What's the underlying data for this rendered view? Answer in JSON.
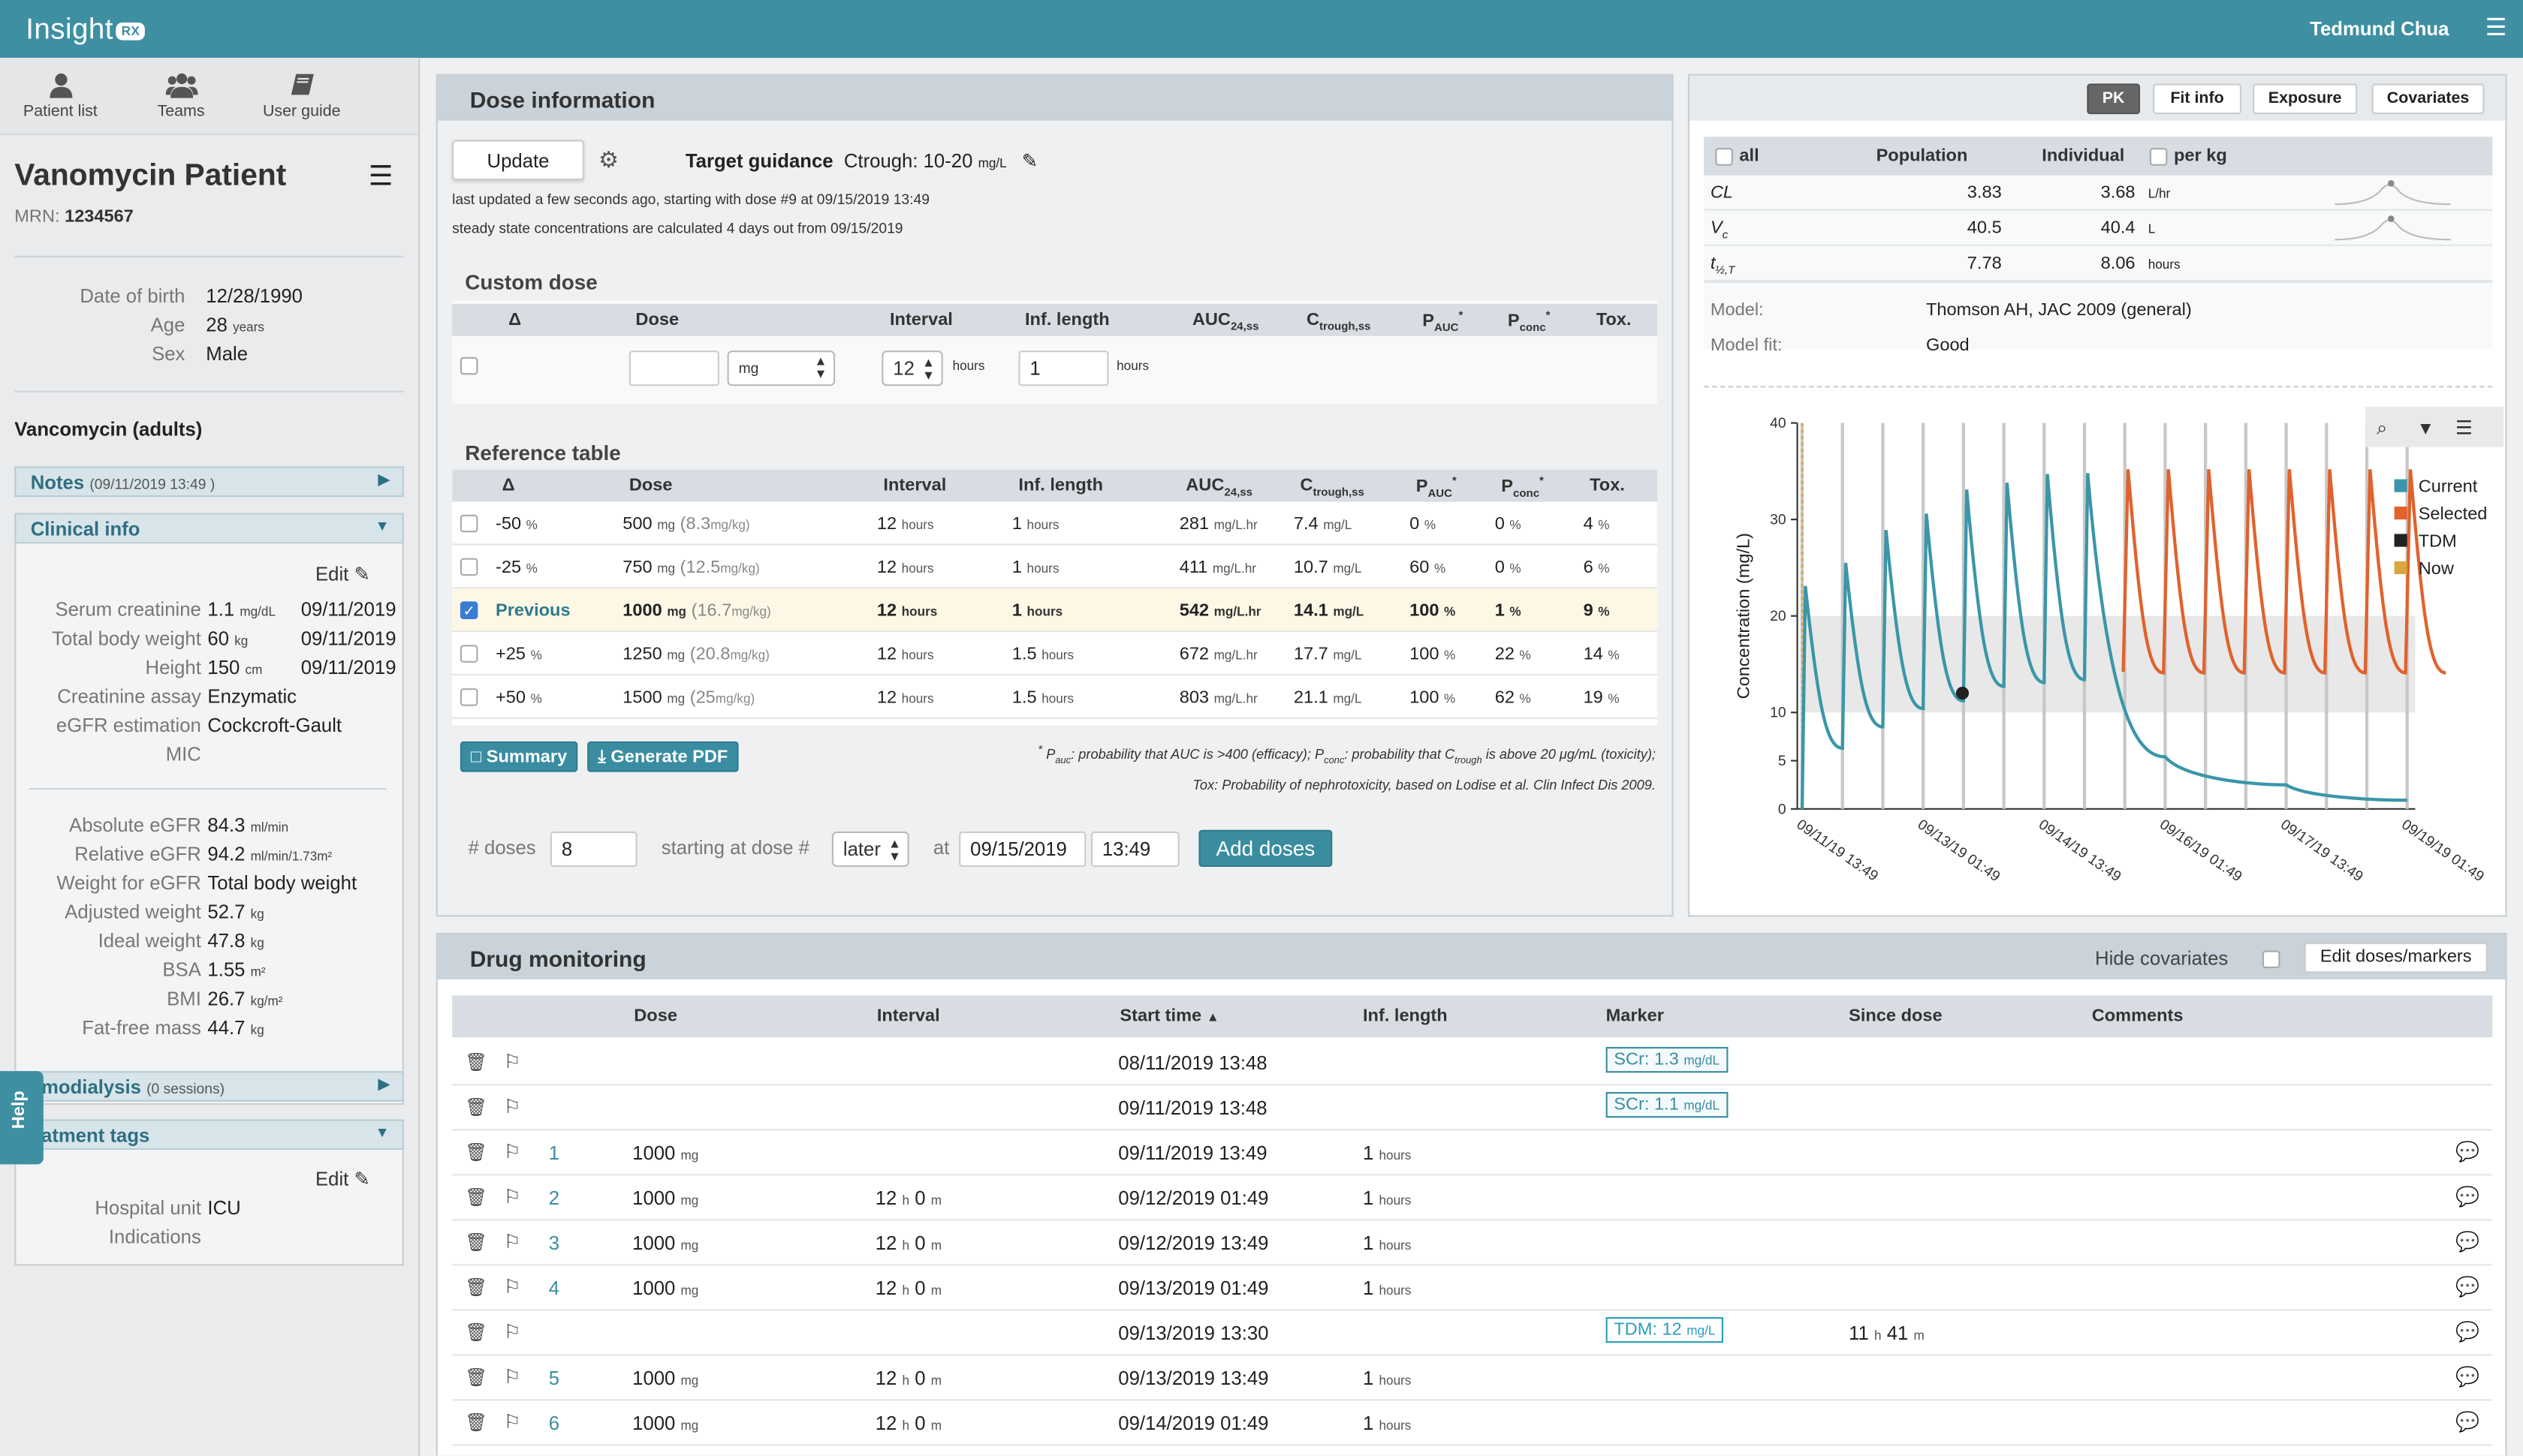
{
  "app": {
    "logo": "Insight",
    "logo_badge": "RX",
    "user": "Tedmund Chua"
  },
  "nav": [
    {
      "label": "Patient list",
      "icon": "user-icon"
    },
    {
      "label": "Teams",
      "icon": "users-icon"
    },
    {
      "label": "User guide",
      "icon": "book-icon"
    }
  ],
  "patient": {
    "name": "Vanomycin Patient",
    "mrn_label": "MRN:",
    "mrn": "1234567",
    "demographics": [
      {
        "k": "Date of birth",
        "v": "12/28/1990",
        "u": ""
      },
      {
        "k": "Age",
        "v": "28",
        "u": "years"
      },
      {
        "k": "Sex",
        "v": "Male",
        "u": ""
      }
    ],
    "drug": "Vancomycin (adults)"
  },
  "notes": {
    "label": "Notes",
    "date": "(09/11/2019 13:49 )"
  },
  "clinical": {
    "label": "Clinical info",
    "edit": "Edit",
    "rows": [
      {
        "k": "Serum creatinine",
        "v": "1.1",
        "u": "mg/dL",
        "d": "09/11/2019"
      },
      {
        "k": "Total body weight",
        "v": "60",
        "u": "kg",
        "d": "09/11/2019"
      },
      {
        "k": "Height",
        "v": "150",
        "u": "cm",
        "d": "09/11/2019"
      },
      {
        "k": "Creatinine assay",
        "v": "Enzymatic",
        "u": "",
        "d": ""
      },
      {
        "k": "eGFR estimation",
        "v": "Cockcroft-Gault",
        "u": "",
        "d": ""
      },
      {
        "k": "MIC",
        "v": "",
        "u": "",
        "d": ""
      }
    ],
    "derived": [
      {
        "k": "Absolute eGFR",
        "v": "84.3",
        "u": "ml/min"
      },
      {
        "k": "Relative eGFR",
        "v": "94.2",
        "u": "ml/min/1.73m²"
      },
      {
        "k": "Weight for eGFR",
        "v": "Total body weight",
        "u": ""
      },
      {
        "k": "Adjusted weight",
        "v": "52.7",
        "u": "kg"
      },
      {
        "k": "Ideal weight",
        "v": "47.8",
        "u": "kg"
      },
      {
        "k": "BSA",
        "v": "1.55",
        "u": "m²"
      },
      {
        "k": "BMI",
        "v": "26.7",
        "u": "kg/m²"
      },
      {
        "k": "Fat-free mass",
        "v": "44.7",
        "u": "kg"
      }
    ]
  },
  "hemo": {
    "label": "emodialysis",
    "count": "(0 sessions)"
  },
  "tags": {
    "label": "eatment tags",
    "edit": "Edit",
    "rows": [
      {
        "k": "Hospital unit",
        "v": "ICU"
      },
      {
        "k": "Indications",
        "v": ""
      }
    ]
  },
  "help": "Help",
  "dose": {
    "title": "Dose information",
    "update": "Update",
    "tg_label": "Target guidance",
    "tg_value": "Ctrough: 10-20",
    "tg_unit": "mg/L",
    "status1": "last updated a few seconds ago, starting with dose #9 at 09/15/2019 13:49",
    "status2": "steady state concentrations are calculated 4 days out from 09/15/2019",
    "custom_title": "Custom dose",
    "custom_headers": [
      "Δ",
      "Dose",
      "Interval",
      "Inf. length",
      "AUC",
      "C",
      "P",
      "P",
      "Tox."
    ],
    "custom": {
      "dose_unit": "mg",
      "interval": "12",
      "interval_unit": "hours",
      "inf": "1",
      "inf_unit": "hours"
    },
    "ref_title": "Reference table",
    "ref_headers": [
      "Δ",
      "Dose",
      "Interval",
      "Inf. length",
      "AUC",
      "C",
      "P",
      "P",
      "Tox."
    ],
    "ref_rows": [
      {
        "delta": "-50",
        "du": "%",
        "dose": "500",
        "dunit": "mg",
        "dkg": "(8.3",
        "dkgu": "mg/kg)",
        "int": "12",
        "intu": "hours",
        "inf": "1",
        "infu": "hours",
        "auc": "281",
        "aucu": "mg/L.hr",
        "ct": "7.4",
        "ctu": "mg/L",
        "pauc": "0",
        "paucu": "%",
        "pconc": "0",
        "pconcu": "%",
        "tox": "4",
        "toxu": "%",
        "checked": false
      },
      {
        "delta": "-25",
        "du": "%",
        "dose": "750",
        "dunit": "mg",
        "dkg": "(12.5",
        "dkgu": "mg/kg)",
        "int": "12",
        "intu": "hours",
        "inf": "1",
        "infu": "hours",
        "auc": "411",
        "aucu": "mg/L.hr",
        "ct": "10.7",
        "ctu": "mg/L",
        "pauc": "60",
        "paucu": "%",
        "pconc": "0",
        "pconcu": "%",
        "tox": "6",
        "toxu": "%",
        "checked": false
      },
      {
        "delta": "Previous",
        "du": "",
        "dose": "1000",
        "dunit": "mg",
        "dkg": "(16.7",
        "dkgu": "mg/kg)",
        "int": "12",
        "intu": "hours",
        "inf": "1",
        "infu": "hours",
        "auc": "542",
        "aucu": "mg/L.hr",
        "ct": "14.1",
        "ctu": "mg/L",
        "pauc": "100",
        "paucu": "%",
        "pconc": "1",
        "pconcu": "%",
        "tox": "9",
        "toxu": "%",
        "checked": true
      },
      {
        "delta": "+25",
        "du": "%",
        "dose": "1250",
        "dunit": "mg",
        "dkg": "(20.8",
        "dkgu": "mg/kg)",
        "int": "12",
        "intu": "hours",
        "inf": "1.5",
        "infu": "hours",
        "auc": "672",
        "aucu": "mg/L.hr",
        "ct": "17.7",
        "ctu": "mg/L",
        "pauc": "100",
        "paucu": "%",
        "pconc": "22",
        "pconcu": "%",
        "tox": "14",
        "toxu": "%",
        "checked": false
      },
      {
        "delta": "+50",
        "du": "%",
        "dose": "1500",
        "dunit": "mg",
        "dkg": "(25",
        "dkgu": "mg/kg)",
        "int": "12",
        "intu": "hours",
        "inf": "1.5",
        "infu": "hours",
        "auc": "803",
        "aucu": "mg/L.hr",
        "ct": "21.1",
        "ctu": "mg/L",
        "pauc": "100",
        "paucu": "%",
        "pconc": "62",
        "pconcu": "%",
        "tox": "19",
        "toxu": "%",
        "checked": false
      }
    ],
    "summary_btn": "Summary",
    "pdf_btn": "Generate PDF",
    "footnote1": "probability that AUC is >400 (efficacy);",
    "footnote1b": "probability that C",
    "footnote1c": "is above 20 μg/mL (toxicity);",
    "footnote2": "Tox: Probability of nephrotoxicity, based on Lodise et al. Clin Infect Dis 2009.",
    "ndoses_label": "# doses",
    "ndoses": "8",
    "start_label": "starting at dose #",
    "start_sel": "later",
    "at_label": "at",
    "at_date": "09/15/2019",
    "at_time": "13:49",
    "add_btn": "Add doses"
  },
  "pk": {
    "tabs": [
      "PK",
      "Fit info",
      "Exposure",
      "Covariates"
    ],
    "all": "all",
    "col_pop": "Population",
    "col_ind": "Individual",
    "per_kg": "per kg",
    "rows": [
      {
        "p": "CL",
        "pop": "3.83",
        "ind": "3.68",
        "u": "L/hr"
      },
      {
        "p": "V",
        "pop": "40.5",
        "ind": "40.4",
        "u": "L"
      },
      {
        "p": "t",
        "pop": "7.78",
        "ind": "8.06",
        "u": "hours"
      }
    ],
    "model_label": "Model:",
    "model": "Thomson AH, JAC 2009 (general)",
    "fit_label": "Model fit:",
    "fit": "Good"
  },
  "chart_data": {
    "type": "line",
    "ylabel": "Concentration (mg/L)",
    "ylim": [
      0,
      40
    ],
    "yticks": [
      "0",
      "5",
      "10",
      "20",
      "30",
      "40"
    ],
    "xticks": [
      "09/11/19 13:49",
      "09/13/19 01:49",
      "09/14/19 13:49",
      "09/16/19 01:49",
      "09/17/19 13:49",
      "09/19/19 01:49"
    ],
    "target_band": [
      10,
      20
    ],
    "series": [
      {
        "name": "Current",
        "color": "#3a96a8"
      },
      {
        "name": "Selected",
        "color": "#e0622d"
      },
      {
        "name": "TDM",
        "color": "#222222"
      },
      {
        "name": "Now",
        "color": "#d9a640"
      }
    ],
    "current_peaks": [
      {
        "x": "09/11/19 13:49",
        "y": 23.1
      },
      {
        "x": "09/12/19 01:49",
        "y": 25.5
      },
      {
        "x": "09/12/19 13:49",
        "y": 28.9
      },
      {
        "x": "09/13/19 01:49",
        "y": 30.6
      },
      {
        "x": "09/13/19 13:49",
        "y": 33.1
      },
      {
        "x": "09/14/19 01:49",
        "y": 33.8
      },
      {
        "x": "09/14/19 13:49",
        "y": 34.7
      },
      {
        "x": "09/15/19 01:49",
        "y": 34.8
      }
    ],
    "current_troughs": [
      {
        "x": "09/12/19 01:49",
        "y": 6.3
      },
      {
        "x": "09/12/19 13:49",
        "y": 8.5
      },
      {
        "x": "09/13/19 01:49",
        "y": 10.4
      },
      {
        "x": "09/13/19 13:49",
        "y": 11.2
      },
      {
        "x": "09/14/19 01:49",
        "y": 12.7
      },
      {
        "x": "09/14/19 13:49",
        "y": 13.1
      },
      {
        "x": "09/15/19 01:49",
        "y": 13.4
      }
    ],
    "current_washout": [
      {
        "x": "09/16/19 01:49",
        "y": 5.4
      },
      {
        "x": "09/17/19 13:49",
        "y": 2.5
      },
      {
        "x": "09/19/19 01:49",
        "y": 0.9
      }
    ],
    "selected_peaks_y": 35.2,
    "selected_troughs_y": 14.1,
    "tdm": {
      "x": "09/13/19 13:30",
      "y": 12
    }
  },
  "monitoring": {
    "title": "Drug monitoring",
    "hide_cov": "Hide covariates",
    "edit_btn": "Edit doses/markers",
    "headers": [
      "Dose",
      "Interval",
      "Start time",
      "Inf. length",
      "Marker",
      "Since dose",
      "Comments"
    ],
    "rows": [
      {
        "num": "",
        "dose": "",
        "du": "",
        "ih": "",
        "im": "",
        "start": "08/11/2019 13:48",
        "inf": "",
        "infu": "",
        "marker": "SCr: 1.3",
        "mu": "mg/dL",
        "mtype": "scr",
        "sh": "",
        "sm": "",
        "comment": false
      },
      {
        "num": "",
        "dose": "",
        "du": "",
        "ih": "",
        "im": "",
        "start": "09/11/2019 13:48",
        "inf": "",
        "infu": "",
        "marker": "SCr: 1.1",
        "mu": "mg/dL",
        "mtype": "scr",
        "sh": "",
        "sm": "",
        "comment": false
      },
      {
        "num": "1",
        "dose": "1000",
        "du": "mg",
        "ih": "",
        "im": "",
        "start": "09/11/2019 13:49",
        "inf": "1",
        "infu": "hours",
        "marker": "",
        "mu": "",
        "mtype": "",
        "sh": "",
        "sm": "",
        "comment": true
      },
      {
        "num": "2",
        "dose": "1000",
        "du": "mg",
        "ih": "12",
        "im": "0",
        "start": "09/12/2019 01:49",
        "inf": "1",
        "infu": "hours",
        "marker": "",
        "mu": "",
        "mtype": "",
        "sh": "",
        "sm": "",
        "comment": true
      },
      {
        "num": "3",
        "dose": "1000",
        "du": "mg",
        "ih": "12",
        "im": "0",
        "start": "09/12/2019 13:49",
        "inf": "1",
        "infu": "hours",
        "marker": "",
        "mu": "",
        "mtype": "",
        "sh": "",
        "sm": "",
        "comment": true
      },
      {
        "num": "4",
        "dose": "1000",
        "du": "mg",
        "ih": "12",
        "im": "0",
        "start": "09/13/2019 01:49",
        "inf": "1",
        "infu": "hours",
        "marker": "",
        "mu": "",
        "mtype": "",
        "sh": "",
        "sm": "",
        "comment": true
      },
      {
        "num": "",
        "dose": "",
        "du": "",
        "ih": "",
        "im": "",
        "start": "09/13/2019 13:30",
        "inf": "",
        "infu": "",
        "marker": "TDM: 12",
        "mu": "mg/L",
        "mtype": "tdm",
        "sh": "11",
        "sm": "41",
        "comment": true
      },
      {
        "num": "5",
        "dose": "1000",
        "du": "mg",
        "ih": "12",
        "im": "0",
        "start": "09/13/2019 13:49",
        "inf": "1",
        "infu": "hours",
        "marker": "",
        "mu": "",
        "mtype": "",
        "sh": "",
        "sm": "",
        "comment": true
      },
      {
        "num": "6",
        "dose": "1000",
        "du": "mg",
        "ih": "12",
        "im": "0",
        "start": "09/14/2019 01:49",
        "inf": "1",
        "infu": "hours",
        "marker": "",
        "mu": "",
        "mtype": "",
        "sh": "",
        "sm": "",
        "comment": true
      }
    ]
  }
}
